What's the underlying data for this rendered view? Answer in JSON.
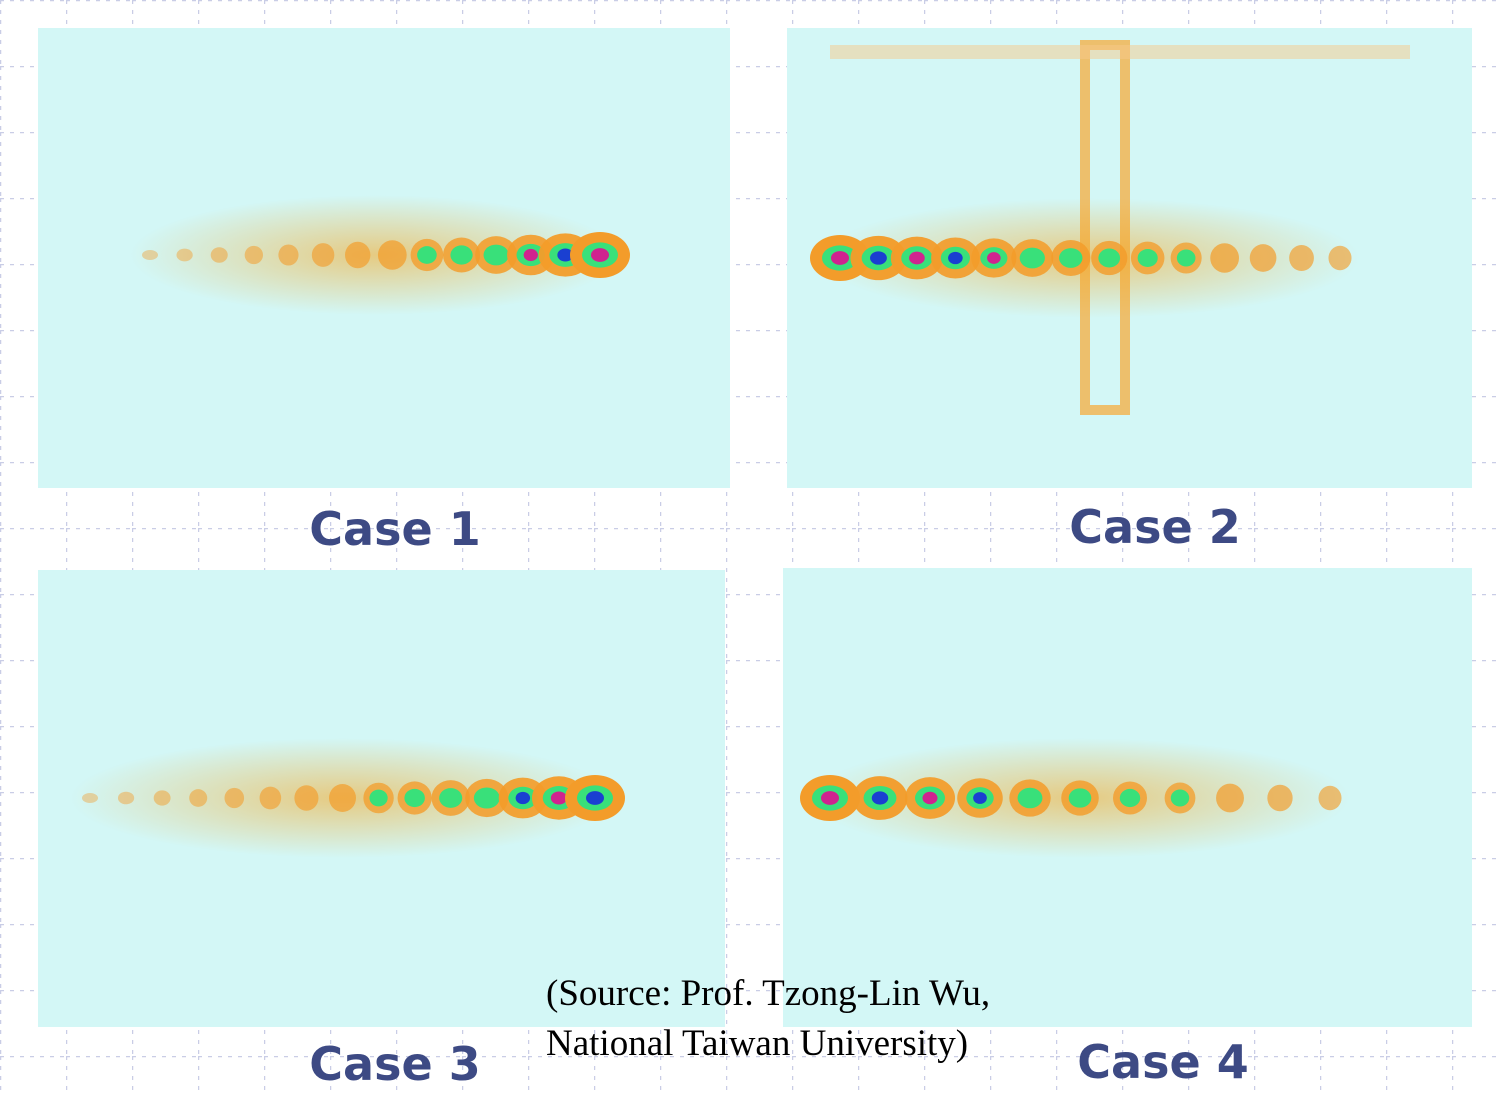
{
  "panels": [
    {
      "label": "Case 1"
    },
    {
      "label": "Case 2"
    },
    {
      "label": "Case 3"
    },
    {
      "label": "Case 4"
    }
  ],
  "source": {
    "lines": [
      "(Source: Prof. Tzong-Lin Wu,",
      "National Taiwan University)"
    ]
  }
}
